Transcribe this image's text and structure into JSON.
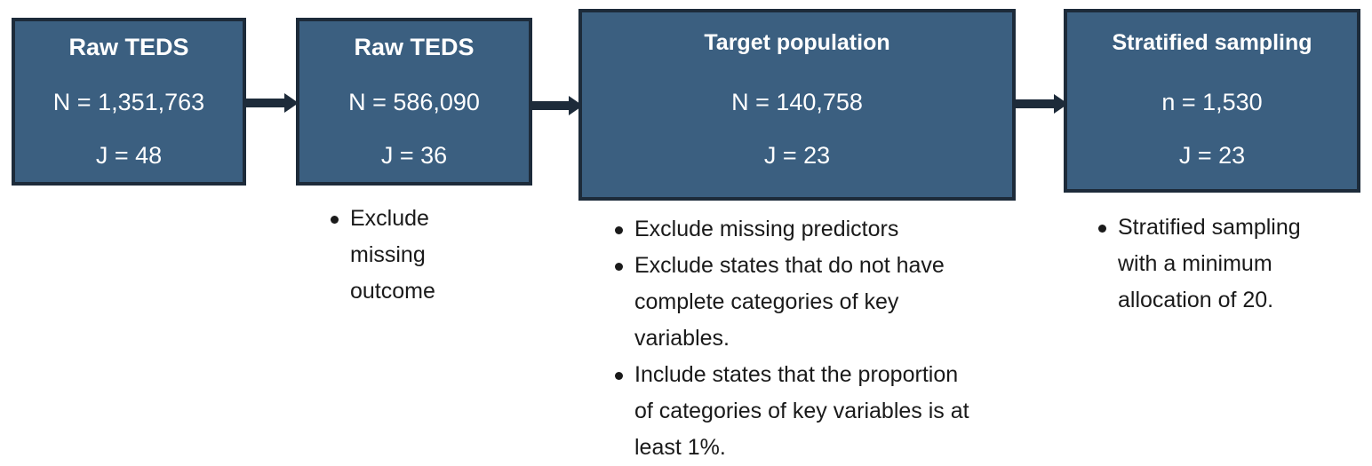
{
  "boxes": [
    {
      "title": "Raw TEDS",
      "line1": "N = 1,351,763",
      "line2": "J = 48"
    },
    {
      "title": "Raw TEDS",
      "line1": "N = 586,090",
      "line2": "J = 36"
    },
    {
      "title": "Target population",
      "line1": "N = 140,758",
      "line2": "J = 23"
    },
    {
      "title": "Stratified sampling",
      "line1": "n = 1,530",
      "line2": "J = 23"
    }
  ],
  "notes": {
    "step2": [
      "Exclude missing outcome"
    ],
    "step3": [
      "Exclude missing predictors",
      " Exclude states that do not have complete categories of key variables.",
      "Include states that the proportion of categories of key variables is at least 1%."
    ],
    "step4": [
      "Stratified sampling with a minimum allocation of 20."
    ]
  },
  "colors": {
    "box_fill": "#3b5f80",
    "box_border": "#1d2b3a",
    "arrow": "#1d2b3a",
    "text_on_box": "#ffffff",
    "note_text": "#1a1a1a"
  }
}
